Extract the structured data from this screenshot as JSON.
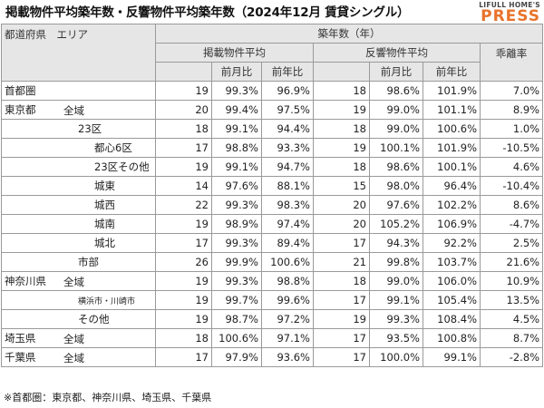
{
  "title": "掲載物件平均築年数・反響物件平均築年数（2024年12月 賃貸シングル）",
  "logo": {
    "top": "LIFULL HOME'S",
    "main": "PRESS"
  },
  "header": {
    "area_col": "都道府県　エリア",
    "group": "築年数（年）",
    "listed": "掲載物件平均",
    "inquired": "反響物件平均",
    "mom": "前月比",
    "yoy": "前年比",
    "gap": "乖離率"
  },
  "rows": [
    {
      "pref": "首都圏",
      "area": "",
      "listed": "19",
      "l_mom": "99.3%",
      "l_yoy": "96.9%",
      "inq": "18",
      "i_mom": "98.6%",
      "i_yoy": "101.9%",
      "gap": "7.0%"
    },
    {
      "pref": "東京都",
      "area": "全域",
      "listed": "20",
      "l_mom": "99.4%",
      "l_yoy": "97.5%",
      "inq": "19",
      "i_mom": "99.0%",
      "i_yoy": "101.1%",
      "gap": "8.9%"
    },
    {
      "pref": "",
      "area": "23区",
      "listed": "18",
      "l_mom": "99.1%",
      "l_yoy": "94.4%",
      "inq": "18",
      "i_mom": "99.0%",
      "i_yoy": "100.6%",
      "gap": "1.0%"
    },
    {
      "pref": "",
      "area": "都心6区",
      "listed": "17",
      "l_mom": "98.8%",
      "l_yoy": "93.3%",
      "inq": "19",
      "i_mom": "100.1%",
      "i_yoy": "101.9%",
      "gap": "-10.5%"
    },
    {
      "pref": "",
      "area": "23区その他",
      "listed": "19",
      "l_mom": "99.1%",
      "l_yoy": "94.7%",
      "inq": "18",
      "i_mom": "98.6%",
      "i_yoy": "100.1%",
      "gap": "4.6%"
    },
    {
      "pref": "",
      "area": "城東",
      "listed": "14",
      "l_mom": "97.6%",
      "l_yoy": "88.1%",
      "inq": "15",
      "i_mom": "98.0%",
      "i_yoy": "96.4%",
      "gap": "-10.4%"
    },
    {
      "pref": "",
      "area": "城西",
      "listed": "22",
      "l_mom": "99.3%",
      "l_yoy": "98.3%",
      "inq": "20",
      "i_mom": "97.6%",
      "i_yoy": "102.2%",
      "gap": "8.6%"
    },
    {
      "pref": "",
      "area": "城南",
      "listed": "19",
      "l_mom": "98.9%",
      "l_yoy": "97.4%",
      "inq": "20",
      "i_mom": "105.2%",
      "i_yoy": "106.9%",
      "gap": "-4.7%"
    },
    {
      "pref": "",
      "area": "城北",
      "listed": "17",
      "l_mom": "99.3%",
      "l_yoy": "89.4%",
      "inq": "17",
      "i_mom": "94.3%",
      "i_yoy": "92.2%",
      "gap": "2.5%"
    },
    {
      "pref": "",
      "area": "市部",
      "listed": "26",
      "l_mom": "99.9%",
      "l_yoy": "100.6%",
      "inq": "21",
      "i_mom": "99.8%",
      "i_yoy": "103.7%",
      "gap": "21.6%"
    },
    {
      "pref": "神奈川県",
      "area": "全域",
      "listed": "19",
      "l_mom": "99.3%",
      "l_yoy": "98.8%",
      "inq": "18",
      "i_mom": "99.0%",
      "i_yoy": "106.0%",
      "gap": "10.9%"
    },
    {
      "pref": "",
      "area": "横浜市・川崎市",
      "listed": "19",
      "l_mom": "99.7%",
      "l_yoy": "99.6%",
      "inq": "17",
      "i_mom": "99.1%",
      "i_yoy": "105.4%",
      "gap": "13.5%"
    },
    {
      "pref": "",
      "area": "その他",
      "listed": "19",
      "l_mom": "98.7%",
      "l_yoy": "97.2%",
      "inq": "19",
      "i_mom": "99.3%",
      "i_yoy": "108.4%",
      "gap": "4.5%"
    },
    {
      "pref": "埼玉県",
      "area": "全域",
      "listed": "18",
      "l_mom": "100.6%",
      "l_yoy": "97.1%",
      "inq": "17",
      "i_mom": "93.5%",
      "i_yoy": "100.8%",
      "gap": "8.7%"
    },
    {
      "pref": "千葉県",
      "area": "全域",
      "listed": "17",
      "l_mom": "97.9%",
      "l_yoy": "93.6%",
      "inq": "17",
      "i_mom": "100.0%",
      "i_yoy": "99.1%",
      "gap": "-2.8%"
    }
  ],
  "footnote": "※首都圏：東京都、神奈川県、埼玉県、千葉県"
}
